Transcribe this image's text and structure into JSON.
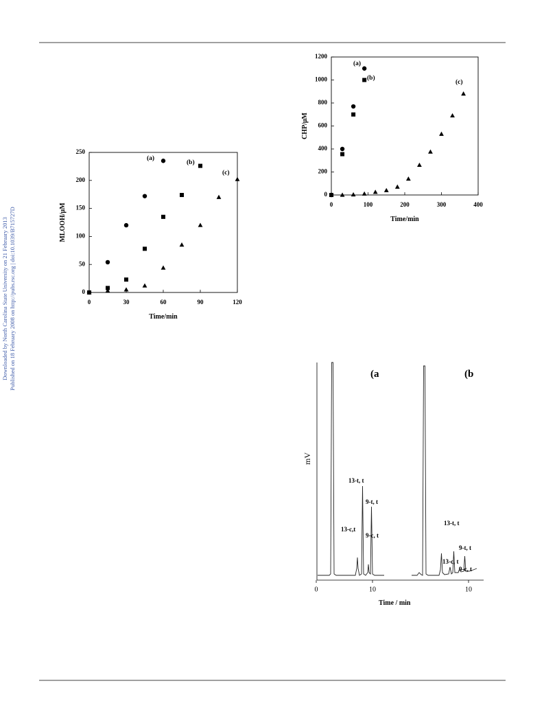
{
  "sidebar": [
    "Downloaded by North Carolina State University on 21 February 2013",
    "Published on 18 February 2008 on http://pubs.rsc.org | doi:10.1039/B715727D"
  ],
  "chart_data": [
    {
      "type": "scatter",
      "xlabel": "Time/min",
      "ylabel": "MLOOH/μM",
      "xlim": [
        0,
        120
      ],
      "ylim": [
        0,
        250
      ],
      "xticks": [
        0,
        30,
        60,
        90,
        120
      ],
      "yticks": [
        0,
        50,
        100,
        150,
        200,
        250
      ],
      "series": [
        {
          "name": "(a)",
          "marker": "circle",
          "color": "#000000",
          "x": [
            0,
            15,
            30,
            45,
            60
          ],
          "values": [
            0,
            54,
            120,
            172,
            235
          ]
        },
        {
          "name": "(b)",
          "marker": "square",
          "color": "#000000",
          "x": [
            0,
            15,
            30,
            45,
            60,
            75,
            90
          ],
          "values": [
            0,
            8,
            23,
            78,
            135,
            174,
            226
          ]
        },
        {
          "name": "(c)",
          "marker": "triangle",
          "color": "#000000",
          "x": [
            0,
            15,
            30,
            45,
            60,
            75,
            90,
            105,
            120
          ],
          "values": [
            0,
            3,
            5,
            12,
            44,
            85,
            120,
            170,
            202
          ]
        }
      ]
    },
    {
      "type": "scatter",
      "xlabel": "Time/min",
      "ylabel": "CHP/μM",
      "xlim": [
        0,
        400
      ],
      "ylim": [
        0,
        1200
      ],
      "xticks": [
        0,
        100,
        200,
        300,
        400
      ],
      "yticks": [
        0,
        200,
        400,
        600,
        800,
        1000,
        1200
      ],
      "series": [
        {
          "name": "(a)",
          "marker": "circle",
          "color": "#000000",
          "x": [
            0,
            30,
            60,
            90
          ],
          "values": [
            0,
            400,
            770,
            1100
          ]
        },
        {
          "name": "(b)",
          "marker": "square",
          "color": "#000000",
          "x": [
            0,
            30,
            60,
            90
          ],
          "values": [
            0,
            355,
            700,
            1000
          ]
        },
        {
          "name": "(c)",
          "marker": "triangle",
          "color": "#000000",
          "x": [
            0,
            30,
            60,
            90,
            120,
            150,
            180,
            210,
            240,
            270,
            300,
            330,
            360
          ],
          "values": [
            0,
            0,
            3,
            10,
            25,
            40,
            70,
            140,
            260,
            375,
            530,
            690,
            880
          ]
        }
      ]
    }
  ],
  "chromatogram": {
    "ylabel": "mV",
    "xlabel": "Time / min",
    "xtick_labels": [
      "0",
      "10",
      "10"
    ],
    "panels": [
      "(a",
      "(b"
    ],
    "peaks_a": [
      "13-t, t",
      "9-t, t",
      "13-c,t",
      "9-c, t"
    ],
    "peaks_b": [
      "13-t, t",
      "9-t, t",
      "13-c, t",
      "9-c, t"
    ]
  }
}
